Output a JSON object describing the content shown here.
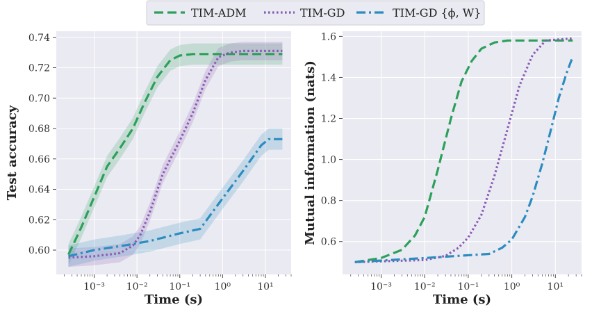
{
  "legend": [
    {
      "label": "TIM-ADM",
      "color": "#2ca05a",
      "dash": "dashed"
    },
    {
      "label": "TIM-GD",
      "color": "#8a5ab4",
      "dash": "dotted"
    },
    {
      "label": "TIM-GD {ϕ, W}",
      "color": "#2b8cc0",
      "dash": "dashdot"
    }
  ],
  "chart_data": [
    {
      "type": "line",
      "xlabel": "Time (s)",
      "ylabel": "Test accuracy",
      "xscale": "log",
      "xlim": [
        0.00013,
        40
      ],
      "ylim": [
        0.584,
        0.744
      ],
      "xticks": [
        0.001,
        0.01,
        0.1,
        1,
        10
      ],
      "xtick_labels": [
        "10⁻³",
        "10⁻²",
        "10⁻¹",
        "10⁰",
        "10¹"
      ],
      "yticks": [
        0.6,
        0.62,
        0.64,
        0.66,
        0.68,
        0.7,
        0.72,
        0.74
      ],
      "ytick_labels": [
        "0.60",
        "0.62",
        "0.64",
        "0.66",
        "0.68",
        "0.70",
        "0.72",
        "0.74"
      ],
      "grid": true,
      "series": [
        {
          "name": "TIM-ADM",
          "band": 0.007,
          "x": [
            0.00025,
            0.0005,
            0.001,
            0.002,
            0.004,
            0.008,
            0.015,
            0.03,
            0.06,
            0.1,
            0.2,
            1,
            25
          ],
          "y": [
            0.597,
            0.615,
            0.635,
            0.655,
            0.667,
            0.68,
            0.697,
            0.714,
            0.725,
            0.728,
            0.729,
            0.729,
            0.729
          ]
        },
        {
          "name": "TIM-GD",
          "band": 0.006,
          "x": [
            0.00025,
            0.001,
            0.004,
            0.008,
            0.012,
            0.02,
            0.04,
            0.1,
            0.2,
            0.4,
            0.8,
            1.5,
            3,
            25
          ],
          "y": [
            0.595,
            0.596,
            0.598,
            0.603,
            0.61,
            0.625,
            0.65,
            0.672,
            0.69,
            0.712,
            0.727,
            0.73,
            0.731,
            0.731
          ]
        },
        {
          "name": "TIM-GD {ϕ, W}",
          "band": 0.007,
          "x": [
            0.00025,
            0.001,
            0.005,
            0.02,
            0.1,
            0.3,
            1,
            3,
            8,
            12,
            25
          ],
          "y": [
            0.596,
            0.6,
            0.603,
            0.606,
            0.611,
            0.614,
            0.634,
            0.652,
            0.669,
            0.673,
            0.673
          ]
        }
      ]
    },
    {
      "type": "line",
      "xlabel": "Time (s)",
      "ylabel": "Mutual information (nats)",
      "xscale": "log",
      "xlim": [
        0.00013,
        40
      ],
      "ylim": [
        0.44,
        1.625
      ],
      "xticks": [
        0.001,
        0.01,
        0.1,
        1,
        10
      ],
      "xtick_labels": [
        "10⁻³",
        "10⁻²",
        "10⁻¹",
        "10⁰",
        "10¹"
      ],
      "yticks": [
        0.6,
        0.8,
        1.0,
        1.2,
        1.4,
        1.6
      ],
      "ytick_labels": [
        "0.6",
        "0.8",
        "1.0",
        "1.2",
        "1.4",
        "1.6"
      ],
      "grid": true,
      "series": [
        {
          "name": "TIM-ADM",
          "x": [
            0.00025,
            0.001,
            0.003,
            0.006,
            0.01,
            0.02,
            0.04,
            0.07,
            0.12,
            0.2,
            0.4,
            0.8,
            25
          ],
          "y": [
            0.5,
            0.52,
            0.56,
            0.63,
            0.72,
            0.95,
            1.2,
            1.38,
            1.48,
            1.54,
            1.57,
            1.58,
            1.58
          ]
        },
        {
          "name": "TIM-GD",
          "x": [
            0.00025,
            0.01,
            0.03,
            0.06,
            0.1,
            0.2,
            0.4,
            0.8,
            1.5,
            3,
            6,
            25
          ],
          "y": [
            0.5,
            0.51,
            0.53,
            0.57,
            0.62,
            0.73,
            0.92,
            1.15,
            1.36,
            1.51,
            1.58,
            1.59
          ]
        },
        {
          "name": "TIM-GD {ϕ, W}",
          "x": [
            0.00025,
            0.01,
            0.3,
            0.6,
            1,
            2,
            3,
            5,
            8,
            12,
            18,
            25
          ],
          "y": [
            0.5,
            0.52,
            0.54,
            0.57,
            0.61,
            0.72,
            0.82,
            0.98,
            1.15,
            1.3,
            1.42,
            1.5
          ]
        }
      ]
    }
  ]
}
